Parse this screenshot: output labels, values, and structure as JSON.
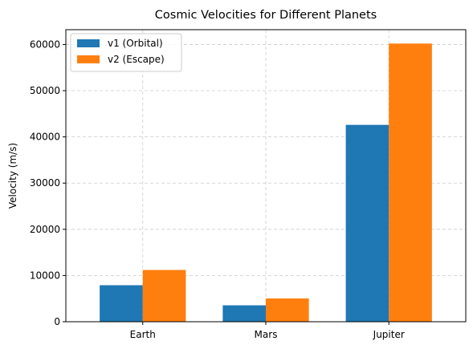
{
  "chart_data": {
    "type": "bar",
    "title": "Cosmic Velocities for Different Planets",
    "xlabel": "",
    "ylabel": "Velocity (m/s)",
    "categories": [
      "Earth",
      "Mars",
      "Jupiter"
    ],
    "series": [
      {
        "name": "v1 (Orbital)",
        "color": "#1f77b4",
        "values": [
          7900,
          3550,
          42600
        ]
      },
      {
        "name": "v2 (Escape)",
        "color": "#ff7f0e",
        "values": [
          11200,
          5030,
          60200
        ]
      }
    ],
    "ylim": [
      0,
      63200
    ],
    "yticks": [
      0,
      10000,
      20000,
      30000,
      40000,
      50000,
      60000
    ],
    "ytick_labels": [
      "0",
      "10000",
      "20000",
      "30000",
      "40000",
      "50000",
      "60000"
    ],
    "grid": true,
    "grid_style": "dashed",
    "legend_position": "top-left"
  }
}
